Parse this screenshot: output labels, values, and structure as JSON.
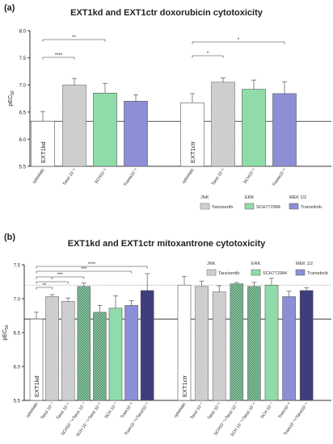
{
  "panels": [
    {
      "label": "(a)",
      "title": "EXT1kd and EXT1ctr doxorubicin cytotoxicity"
    },
    {
      "label": "(b)",
      "title": "EXT1kd and EXT1ctr mitoxantrone cytotoxicity"
    }
  ],
  "chart_data": [
    {
      "type": "bar",
      "title": "EXT1kd and EXT1ctr doxorubicin cytotoxicity",
      "ylabel": "pEC50",
      "ylim": [
        5.5,
        8.0
      ],
      "yticks": [
        "5.5",
        "6.0",
        "6.5",
        "7.0",
        "7.5",
        "8.0"
      ],
      "baseline": 6.33,
      "group_labels": [
        "EXT1kd",
        "EXT1ctr"
      ],
      "categories": [
        "cytostatic",
        "Tanzi 10⁻⁶",
        "SCH10⁻⁶",
        "Trame10⁻⁶",
        "cytostatic",
        "Tanzi 10⁻⁶",
        "SCH10⁻⁶",
        "Trame10⁻⁶"
      ],
      "values": [
        6.33,
        7.0,
        6.85,
        6.7,
        6.67,
        7.05,
        6.92,
        6.84
      ],
      "errors": [
        0.18,
        0.12,
        0.18,
        0.12,
        0.17,
        0.08,
        0.17,
        0.22
      ],
      "colors": [
        "#ffffff",
        "#bcbcbc",
        "#8fdcaa",
        "#8c8fd6",
        "#ffffff",
        "#bcbcbc",
        "#8fdcaa",
        "#8c8fd6"
      ],
      "patterns": [
        "none",
        "checker",
        "none",
        "none",
        "none",
        "checker",
        "none",
        "none"
      ],
      "significance": [
        {
          "from": 0,
          "to": 2,
          "label": "**"
        },
        {
          "from": 0,
          "to": 1,
          "label": "****"
        },
        {
          "from": 4,
          "to": 7,
          "label": "*"
        },
        {
          "from": 4,
          "to": 5,
          "label": "*"
        }
      ],
      "legend": [
        {
          "group": "JNK",
          "name": "Tanzisertib",
          "color": "#bcbcbc",
          "pattern": "checker"
        },
        {
          "group": "ERK",
          "name": "SCH772984",
          "color": "#8fdcaa",
          "pattern": "none"
        },
        {
          "group": "MEK 1/2",
          "name": "Trametinib",
          "color": "#8c8fd6",
          "pattern": "none"
        }
      ]
    },
    {
      "type": "bar",
      "title": "EXT1kd and EXT1ctr mitoxantrone cytotoxicity",
      "ylabel": "pEC50",
      "ylim": [
        5.5,
        7.5
      ],
      "yticks": [
        "5.5",
        "6.0",
        "6.5",
        "7.0",
        "7.5"
      ],
      "baseline": 6.7,
      "refline": 7.2,
      "group_labels": [
        "EXT1kd",
        "EXT1ctr"
      ],
      "categories": [
        "cytostatic",
        "Tanzi 10⁻⁷",
        "Tanzi 10⁻⁶",
        "SCH10⁻⁷+Tanzi 10⁻⁷",
        "SCH 10⁻⁷+Tanzi 10⁻⁶",
        "SCH 10⁻⁷",
        "Tram10⁻⁹",
        "Tram10⁻⁹+Tanzi10⁻⁶",
        "cytostatic",
        "Tanzi 10⁻⁷",
        "Tanzi 10⁻⁶",
        "SCH10⁻⁷+Tanzi 10⁻⁷",
        "SCH 10⁻⁷+Tanzi 10⁻⁶",
        "SCH 10⁻⁷",
        "Tram10⁻⁹",
        "Tram10⁻⁹+Tanzi10⁻⁶"
      ],
      "values": [
        6.7,
        7.03,
        6.96,
        7.18,
        6.8,
        6.86,
        6.9,
        7.12,
        7.2,
        7.18,
        7.1,
        7.22,
        7.18,
        7.2,
        7.03,
        7.12
      ],
      "errors": [
        0.1,
        0.03,
        0.05,
        0.05,
        0.1,
        0.18,
        0.07,
        0.25,
        0.13,
        0.08,
        0.09,
        0.02,
        0.06,
        0.1,
        0.08,
        0.04
      ],
      "colors": [
        "#ffffff",
        "#bcbcbc",
        "#bcbcbc",
        "#3e8e5e",
        "#3e8e5e",
        "#8fdcaa",
        "#8c8fd6",
        "#3e3e7c",
        "#ffffff",
        "#bcbcbc",
        "#bcbcbc",
        "#3e8e5e",
        "#3e8e5e",
        "#8fdcaa",
        "#8c8fd6",
        "#3e3e7c"
      ],
      "patterns": [
        "none",
        "checker",
        "checker",
        "checker",
        "checker",
        "none",
        "none",
        "none",
        "none",
        "checker",
        "checker",
        "checker",
        "checker",
        "none",
        "none",
        "none"
      ],
      "significance": [
        {
          "from": 0,
          "to": 7,
          "label": "****"
        },
        {
          "from": 0,
          "to": 6,
          "label": "***"
        },
        {
          "from": 0,
          "to": 3,
          "label": "***"
        },
        {
          "from": 0,
          "to": 2,
          "label": "*"
        },
        {
          "from": 0,
          "to": 1,
          "label": "**"
        }
      ],
      "legend": [
        {
          "group": "JNK",
          "name": "Tanzisertib",
          "color": "#bcbcbc",
          "pattern": "checker"
        },
        {
          "group": "ERK",
          "name": "SCH772984",
          "color": "#8fdcaa",
          "pattern": "none"
        },
        {
          "group": "MEK 1/2",
          "name": "Trametinib",
          "color": "#8c8fd6",
          "pattern": "none"
        }
      ]
    }
  ]
}
